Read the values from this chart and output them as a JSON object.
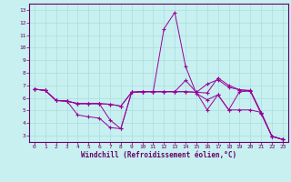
{
  "background_color": "#c8f0f0",
  "line_color": "#990099",
  "marker": "+",
  "xlabel": "Windchill (Refroidissement éolien,°C)",
  "xlim": [
    -0.5,
    23.5
  ],
  "ylim": [
    2.5,
    13.5
  ],
  "xticks": [
    0,
    1,
    2,
    3,
    4,
    5,
    6,
    7,
    8,
    9,
    10,
    11,
    12,
    13,
    14,
    15,
    16,
    17,
    18,
    19,
    20,
    21,
    22,
    23
  ],
  "yticks": [
    3,
    4,
    5,
    6,
    7,
    8,
    9,
    10,
    11,
    12,
    13
  ],
  "lines": [
    [
      0,
      6.7,
      1,
      6.6,
      2,
      5.8,
      3,
      5.75,
      4,
      4.65,
      5,
      4.5,
      6,
      4.4,
      7,
      3.65,
      8,
      3.55,
      9,
      6.45,
      10,
      6.5,
      11,
      6.5,
      12,
      11.5,
      13,
      12.8,
      14,
      8.5,
      15,
      6.35,
      16,
      5.85,
      17,
      6.25,
      18,
      5.05,
      19,
      6.5,
      20,
      6.55,
      21,
      4.75,
      22,
      2.95,
      23,
      2.7
    ],
    [
      0,
      6.7,
      1,
      6.6,
      2,
      5.8,
      3,
      5.75,
      4,
      5.55,
      5,
      5.55,
      6,
      5.55,
      7,
      5.5,
      8,
      5.35,
      9,
      6.45,
      10,
      6.5,
      11,
      6.5,
      12,
      6.5,
      13,
      6.5,
      14,
      6.5,
      15,
      6.45,
      16,
      6.4,
      17,
      7.6,
      18,
      7.0,
      19,
      6.65,
      20,
      6.6,
      21,
      4.85,
      22,
      2.95,
      23,
      2.7
    ],
    [
      0,
      6.7,
      1,
      6.6,
      2,
      5.8,
      3,
      5.75,
      4,
      5.55,
      5,
      5.55,
      6,
      5.55,
      7,
      4.25,
      8,
      3.55,
      9,
      6.45,
      10,
      6.5,
      11,
      6.5,
      12,
      6.5,
      13,
      6.5,
      14,
      7.4,
      15,
      6.45,
      16,
      7.1,
      17,
      7.45,
      18,
      6.85,
      19,
      6.65,
      20,
      6.55,
      21,
      4.8,
      22,
      2.95,
      23,
      2.7
    ],
    [
      0,
      6.7,
      1,
      6.6,
      2,
      5.8,
      3,
      5.75,
      4,
      5.55,
      5,
      5.55,
      6,
      5.55,
      7,
      5.5,
      8,
      5.35,
      9,
      6.45,
      10,
      6.5,
      11,
      6.5,
      12,
      6.5,
      13,
      6.5,
      14,
      6.5,
      15,
      6.45,
      16,
      5.05,
      17,
      6.25,
      18,
      5.05,
      19,
      5.05,
      20,
      5.05,
      21,
      4.85,
      22,
      2.95,
      23,
      2.7
    ]
  ]
}
